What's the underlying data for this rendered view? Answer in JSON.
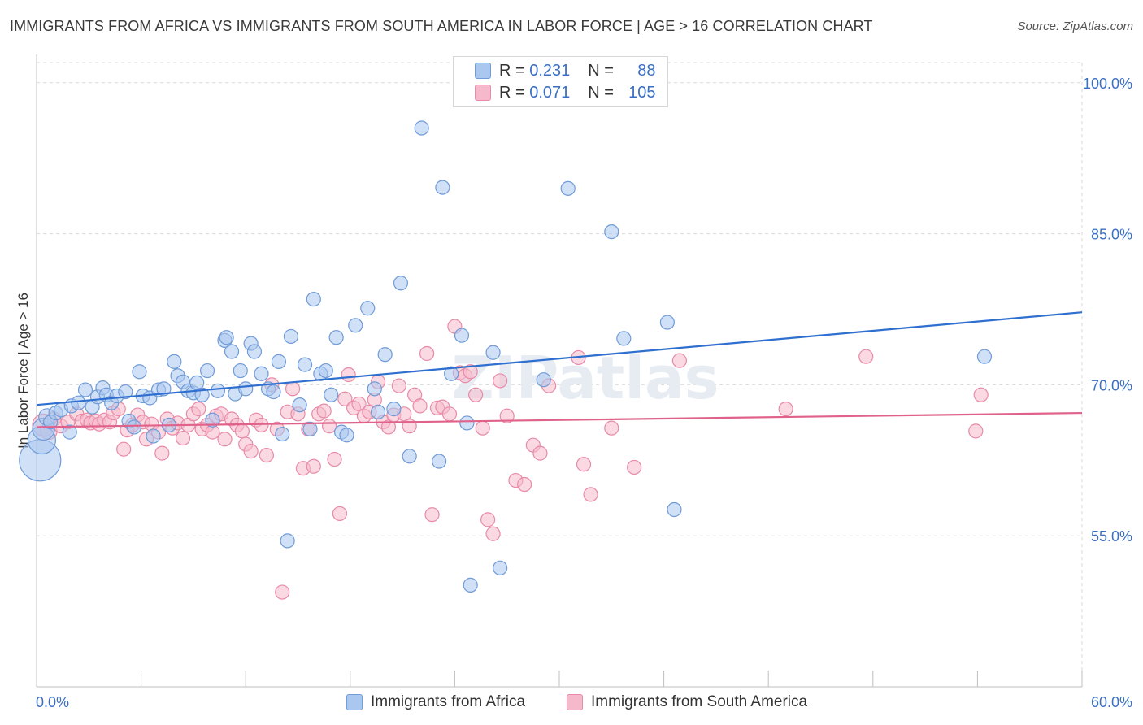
{
  "title": "IMMIGRANTS FROM AFRICA VS IMMIGRANTS FROM SOUTH AMERICA IN LABOR FORCE | AGE > 16 CORRELATION CHART",
  "source": "Source: ZipAtlas.com",
  "watermark": "ZIPatlas",
  "legend": {
    "r_label": "R =",
    "n_label": "N =",
    "rows": [
      {
        "r": "0.231",
        "n": "88"
      },
      {
        "r": "0.071",
        "n": "105"
      }
    ]
  },
  "colors": {
    "africa_fill": "#a9c7ef",
    "africa_stroke": "#6f9bd8",
    "africa_line": "#2e6fcf",
    "sa_fill": "#f5b9cb",
    "sa_stroke": "#e88aa8",
    "sa_line": "#e0628a",
    "axis_label": "#3b6fc4"
  },
  "chart_data": {
    "type": "scatter",
    "title": "IMMIGRANTS FROM AFRICA VS IMMIGRANTS FROM SOUTH AMERICA IN LABOR FORCE | AGE > 16 CORRELATION CHART",
    "xlabel": "",
    "ylabel": "In Labor Force | Age > 16",
    "xlim": [
      0,
      60
    ],
    "ylim": [
      40,
      102
    ],
    "x_tick_labels": [
      "0.0%",
      "60.0%"
    ],
    "y_ticks": [
      55,
      70,
      85,
      100
    ],
    "y_tick_labels": [
      "55.0%",
      "70.0%",
      "85.0%",
      "100.0%"
    ],
    "grid": true,
    "legend_position": "top-center",
    "series": [
      {
        "name": "Immigrants from Africa",
        "r": 0.231,
        "n": 88,
        "trend": {
          "x": [
            0,
            60
          ],
          "y": [
            68.0,
            77.2
          ]
        },
        "points": [
          [
            0.2,
            62.5,
            3
          ],
          [
            0.3,
            64.5,
            2
          ],
          [
            0.4,
            65.6,
            1.6
          ],
          [
            0.6,
            66.8,
            1.2
          ],
          [
            0.8,
            66.3,
            1
          ],
          [
            1.1,
            67.2,
            1
          ],
          [
            1.4,
            67.5,
            1
          ],
          [
            1.9,
            65.3,
            1
          ],
          [
            2.0,
            67.9,
            1
          ],
          [
            2.4,
            68.2,
            1
          ],
          [
            2.8,
            69.5,
            1
          ],
          [
            3.2,
            67.8,
            1
          ],
          [
            3.5,
            68.8,
            1
          ],
          [
            3.8,
            69.7,
            1
          ],
          [
            4.0,
            69.0,
            1
          ],
          [
            4.3,
            68.2,
            1
          ],
          [
            4.6,
            68.9,
            1
          ],
          [
            5.1,
            69.3,
            1
          ],
          [
            5.3,
            66.4,
            1
          ],
          [
            5.6,
            65.8,
            1
          ],
          [
            5.9,
            71.3,
            1
          ],
          [
            6.1,
            68.9,
            1
          ],
          [
            6.5,
            68.7,
            1
          ],
          [
            6.7,
            64.9,
            1
          ],
          [
            7.0,
            69.5,
            1
          ],
          [
            7.3,
            69.6,
            1
          ],
          [
            7.6,
            66.0,
            1
          ],
          [
            7.9,
            72.3,
            1
          ],
          [
            8.1,
            70.9,
            1
          ],
          [
            8.4,
            70.3,
            1
          ],
          [
            8.7,
            69.4,
            1
          ],
          [
            9.0,
            69.2,
            1
          ],
          [
            9.2,
            70.2,
            1
          ],
          [
            9.5,
            69.0,
            1
          ],
          [
            9.8,
            71.4,
            1
          ],
          [
            10.1,
            66.5,
            1
          ],
          [
            10.4,
            69.4,
            1
          ],
          [
            10.8,
            74.4,
            1
          ],
          [
            10.9,
            74.7,
            1
          ],
          [
            11.2,
            73.3,
            1
          ],
          [
            11.4,
            69.1,
            1
          ],
          [
            11.7,
            71.4,
            1
          ],
          [
            12.0,
            69.6,
            1
          ],
          [
            12.3,
            74.1,
            1
          ],
          [
            12.5,
            73.3,
            1
          ],
          [
            12.9,
            71.1,
            1
          ],
          [
            13.3,
            69.6,
            1
          ],
          [
            13.6,
            69.3,
            1
          ],
          [
            13.9,
            72.3,
            1
          ],
          [
            14.1,
            65.1,
            1
          ],
          [
            14.4,
            54.5,
            1
          ],
          [
            14.6,
            74.8,
            1
          ],
          [
            15.1,
            68.0,
            1
          ],
          [
            15.4,
            72.0,
            1
          ],
          [
            15.7,
            65.6,
            1
          ],
          [
            15.9,
            78.5,
            1
          ],
          [
            16.3,
            71.1,
            1
          ],
          [
            16.6,
            71.4,
            1
          ],
          [
            16.9,
            69.0,
            1
          ],
          [
            17.2,
            74.7,
            1
          ],
          [
            17.5,
            65.3,
            1
          ],
          [
            17.8,
            65.0,
            1
          ],
          [
            18.3,
            75.9,
            1
          ],
          [
            19.0,
            77.6,
            1
          ],
          [
            19.4,
            69.6,
            1
          ],
          [
            19.6,
            67.3,
            1
          ],
          [
            20.0,
            73.0,
            1
          ],
          [
            20.5,
            67.6,
            1
          ],
          [
            20.9,
            80.1,
            1
          ],
          [
            21.4,
            62.9,
            1
          ],
          [
            22.1,
            95.5,
            1
          ],
          [
            23.1,
            62.4,
            1
          ],
          [
            23.3,
            89.6,
            1
          ],
          [
            23.8,
            71.1,
            1
          ],
          [
            24.4,
            74.9,
            1
          ],
          [
            24.7,
            66.2,
            1
          ],
          [
            24.9,
            50.1,
            1
          ],
          [
            26.2,
            73.2,
            1
          ],
          [
            26.6,
            51.8,
            1
          ],
          [
            29.1,
            70.5,
            1
          ],
          [
            30.5,
            89.5,
            1
          ],
          [
            33.0,
            85.2,
            1
          ],
          [
            33.7,
            74.6,
            1
          ],
          [
            36.2,
            76.2,
            1
          ],
          [
            36.6,
            57.6,
            1
          ],
          [
            54.4,
            72.8,
            1
          ]
        ]
      },
      {
        "name": "Immigrants from South America",
        "r": 0.071,
        "n": 105,
        "trend": {
          "x": [
            0,
            60
          ],
          "y": [
            65.8,
            67.2
          ]
        },
        "points": [
          [
            0.4,
            66.0,
            1.6
          ],
          [
            0.7,
            65.4,
            1.2
          ],
          [
            1.0,
            66.6,
            1
          ],
          [
            1.4,
            65.9,
            1
          ],
          [
            1.8,
            66.3,
            1
          ],
          [
            2.3,
            67.1,
            1
          ],
          [
            2.6,
            66.4,
            1
          ],
          [
            2.9,
            66.5,
            1
          ],
          [
            3.1,
            66.2,
            1
          ],
          [
            3.4,
            66.4,
            1
          ],
          [
            3.6,
            66.1,
            1
          ],
          [
            3.9,
            66.5,
            1
          ],
          [
            4.2,
            66.3,
            1
          ],
          [
            4.4,
            67.2,
            1
          ],
          [
            4.7,
            67.6,
            1
          ],
          [
            5.0,
            63.6,
            1
          ],
          [
            5.2,
            65.5,
            1
          ],
          [
            5.5,
            66.0,
            1
          ],
          [
            5.8,
            67.0,
            1
          ],
          [
            6.1,
            66.3,
            1
          ],
          [
            6.3,
            64.6,
            1
          ],
          [
            6.6,
            66.1,
            1
          ],
          [
            7.0,
            65.3,
            1
          ],
          [
            7.2,
            63.2,
            1
          ],
          [
            7.5,
            66.6,
            1
          ],
          [
            7.8,
            65.7,
            1
          ],
          [
            8.1,
            66.2,
            1
          ],
          [
            8.4,
            64.7,
            1
          ],
          [
            8.7,
            66.0,
            1
          ],
          [
            9.0,
            67.1,
            1
          ],
          [
            9.3,
            67.6,
            1
          ],
          [
            9.5,
            65.6,
            1
          ],
          [
            9.8,
            66.0,
            1
          ],
          [
            10.1,
            65.3,
            1
          ],
          [
            10.3,
            66.9,
            1
          ],
          [
            10.6,
            67.1,
            1
          ],
          [
            10.8,
            64.6,
            1
          ],
          [
            11.2,
            66.6,
            1
          ],
          [
            11.5,
            66.0,
            1
          ],
          [
            11.8,
            65.4,
            1
          ],
          [
            12.0,
            64.1,
            1
          ],
          [
            12.3,
            63.4,
            1
          ],
          [
            12.6,
            66.5,
            1
          ],
          [
            12.9,
            66.0,
            1
          ],
          [
            13.2,
            63.0,
            1
          ],
          [
            13.5,
            70.0,
            1
          ],
          [
            13.8,
            65.6,
            1
          ],
          [
            14.1,
            49.4,
            1
          ],
          [
            14.4,
            67.3,
            1
          ],
          [
            14.7,
            69.6,
            1
          ],
          [
            15.0,
            67.1,
            1
          ],
          [
            15.3,
            61.7,
            1
          ],
          [
            15.6,
            65.6,
            1
          ],
          [
            15.9,
            61.9,
            1
          ],
          [
            16.2,
            67.1,
            1
          ],
          [
            16.5,
            67.4,
            1
          ],
          [
            16.8,
            65.9,
            1
          ],
          [
            17.1,
            62.6,
            1
          ],
          [
            17.4,
            57.2,
            1
          ],
          [
            17.7,
            68.6,
            1
          ],
          [
            17.9,
            71.0,
            1
          ],
          [
            18.2,
            67.7,
            1
          ],
          [
            18.5,
            68.1,
            1
          ],
          [
            18.8,
            66.9,
            1
          ],
          [
            19.1,
            67.3,
            1
          ],
          [
            19.4,
            68.5,
            1
          ],
          [
            19.6,
            70.3,
            1
          ],
          [
            19.9,
            66.3,
            1
          ],
          [
            20.2,
            65.8,
            1
          ],
          [
            20.5,
            67.0,
            1
          ],
          [
            20.8,
            69.9,
            1
          ],
          [
            21.1,
            67.1,
            1
          ],
          [
            21.4,
            65.9,
            1
          ],
          [
            21.7,
            69.0,
            1
          ],
          [
            22.0,
            67.9,
            1
          ],
          [
            22.4,
            73.1,
            1
          ],
          [
            22.7,
            57.1,
            1
          ],
          [
            23.0,
            67.7,
            1
          ],
          [
            23.3,
            67.8,
            1
          ],
          [
            23.7,
            67.1,
            1
          ],
          [
            24.0,
            75.8,
            1
          ],
          [
            24.3,
            71.2,
            1
          ],
          [
            24.6,
            70.9,
            1
          ],
          [
            24.9,
            71.3,
            1
          ],
          [
            25.2,
            69.0,
            1
          ],
          [
            25.6,
            65.7,
            1
          ],
          [
            25.9,
            56.6,
            1
          ],
          [
            26.2,
            55.2,
            1
          ],
          [
            26.6,
            70.4,
            1
          ],
          [
            27.0,
            66.9,
            1
          ],
          [
            27.5,
            60.5,
            1
          ],
          [
            28.0,
            60.1,
            1
          ],
          [
            28.5,
            64.0,
            1
          ],
          [
            28.9,
            63.2,
            1
          ],
          [
            29.4,
            69.9,
            1
          ],
          [
            31.1,
            72.7,
            1
          ],
          [
            31.4,
            62.1,
            1
          ],
          [
            31.8,
            59.1,
            1
          ],
          [
            33.0,
            65.7,
            1
          ],
          [
            34.3,
            61.8,
            1
          ],
          [
            36.9,
            72.4,
            1
          ],
          [
            43.0,
            67.6,
            1
          ],
          [
            47.6,
            72.8,
            1
          ],
          [
            53.9,
            65.4,
            1
          ],
          [
            54.2,
            69.0,
            1
          ]
        ]
      }
    ]
  }
}
